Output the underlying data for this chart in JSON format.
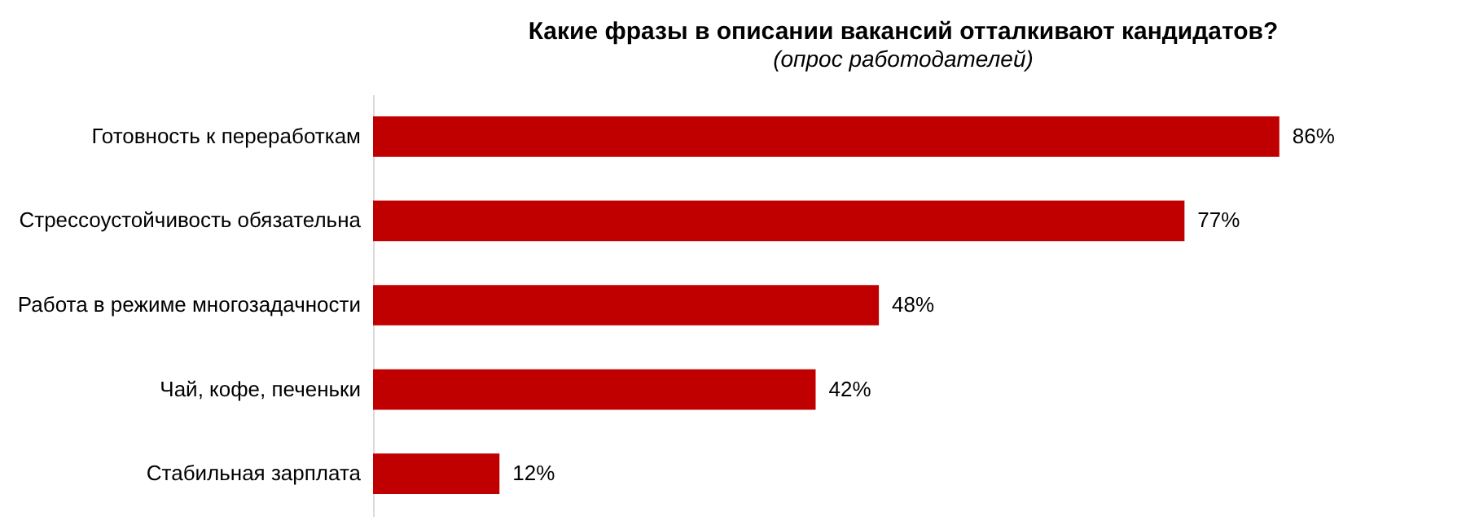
{
  "chart_data": {
    "type": "bar",
    "orientation": "horizontal",
    "title": "Какие фразы в описании вакансий отталкивают кандидатов?",
    "subtitle": "(опрос работодателей)",
    "categories": [
      "Готовность к переработкам",
      "Стрессоустойчивость обязательна",
      "Работа в режиме многозадачности",
      "Чай, кофе, печеньки",
      "Стабильная зарплата"
    ],
    "values": [
      86,
      77,
      48,
      42,
      12
    ],
    "value_labels": [
      "86%",
      "77%",
      "48%",
      "42%",
      "12%"
    ],
    "color": "#c00000",
    "grid": false
  }
}
